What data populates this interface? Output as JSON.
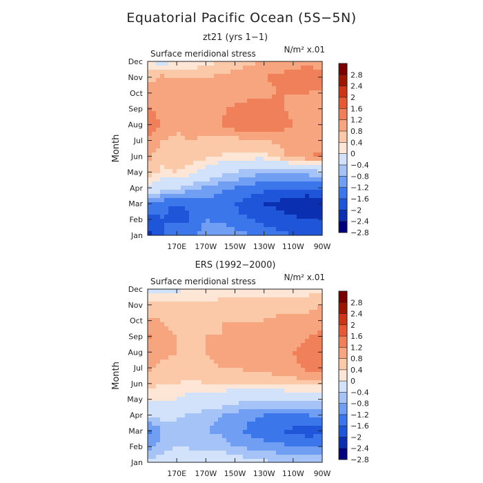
{
  "title": "Equatorial Pacific Ocean (5S−5N)",
  "colors": {
    "scale": [
      "#00007f",
      "#0a2fb0",
      "#1f55d8",
      "#3b76ea",
      "#6f9ef2",
      "#a6c3f7",
      "#d3e2fb",
      "#fde6d6",
      "#fbc8a8",
      "#f6a57f",
      "#f0805a",
      "#e55a34",
      "#cc3616",
      "#9c1600",
      "#7a0000"
    ]
  },
  "chart_data": [
    {
      "type": "heatmap",
      "subtitle": "zt21 (yrs 1−1)",
      "variable_label": "Surface meridional stress",
      "units_label": "N/m² x.01",
      "ylabel": "Month",
      "xlabel": "",
      "y_tick_labels": [
        "Jan",
        "Feb",
        "Mar",
        "Apr",
        "May",
        "Jun",
        "Jul",
        "Aug",
        "Sep",
        "Oct",
        "Nov",
        "Dec"
      ],
      "x_tick_labels": [
        "170E",
        "170W",
        "150W",
        "130W",
        "110W",
        "90W"
      ],
      "x_ticks_deg": [
        170,
        190,
        210,
        230,
        250,
        270
      ],
      "xlim": [
        150,
        270
      ],
      "ylim": [
        0,
        11
      ],
      "colorbar_levels": [
        "2.8",
        "2.4",
        "2",
        "1.6",
        "1.2",
        "0.8",
        "0.4",
        "0",
        "−0.4",
        "−0.8",
        "−1.2",
        "−1.6",
        "−2",
        "−2.4",
        "−2.8"
      ],
      "clevs": [
        -2.8,
        -2.4,
        -2,
        -1.6,
        -1.2,
        -0.8,
        -0.4,
        0,
        0.4,
        0.8,
        1.2,
        1.6,
        2,
        2.4,
        2.8
      ],
      "grid_x_deg": [
        150,
        160,
        170,
        180,
        190,
        200,
        210,
        220,
        230,
        240,
        250,
        260,
        270
      ],
      "z": [
        [
          -2.6,
          -2.0,
          -1.6,
          -1.7,
          -1.4,
          -1.2,
          -1.4,
          -1.6,
          -1.8,
          -1.9,
          -2.0,
          -2.2,
          -2.1
        ],
        [
          -2.2,
          -2.0,
          -2.2,
          -2.0,
          -1.6,
          -1.7,
          -1.9,
          -2.0,
          -2.1,
          -2.2,
          -2.3,
          -2.4,
          -2.4
        ],
        [
          -1.7,
          -1.9,
          -2.0,
          -1.9,
          -1.7,
          -1.8,
          -2.0,
          -2.2,
          -2.4,
          -2.5,
          -2.7,
          -2.8,
          -2.7
        ],
        [
          -0.1,
          -0.5,
          -0.7,
          -1.1,
          -1.3,
          -1.5,
          -1.6,
          -1.7,
          -1.9,
          -1.9,
          -2.0,
          -2.0,
          -1.9
        ],
        [
          0.7,
          0.3,
          0.4,
          0.2,
          -0.3,
          -0.6,
          -0.8,
          -1.0,
          -1.2,
          -1.2,
          -1.1,
          -1.0,
          -0.9
        ],
        [
          0.9,
          0.6,
          0.7,
          0.6,
          0.5,
          0.4,
          0.3,
          0.2,
          0.2,
          0.6,
          1.0,
          1.2,
          1.3
        ],
        [
          1.1,
          0.8,
          0.7,
          0.8,
          0.7,
          0.6,
          0.6,
          0.8,
          0.8,
          0.9,
          0.9,
          0.9,
          0.9
        ],
        [
          1.7,
          1.1,
          0.9,
          1.0,
          1.1,
          1.2,
          1.5,
          1.6,
          1.6,
          1.4,
          1.2,
          1.1,
          1.1
        ],
        [
          1.3,
          1.0,
          0.9,
          0.9,
          0.9,
          1.1,
          1.3,
          1.5,
          1.4,
          1.3,
          1.1,
          1.1,
          1.1
        ],
        [
          1.0,
          1.0,
          1.0,
          1.0,
          0.9,
          0.9,
          0.9,
          1.0,
          1.1,
          1.2,
          1.2,
          1.2,
          1.1
        ],
        [
          0.6,
          0.9,
          0.8,
          0.8,
          0.8,
          0.9,
          1.0,
          1.1,
          1.2,
          1.3,
          1.4,
          1.6,
          1.4
        ],
        [
          0.0,
          -0.2,
          0.0,
          0.1,
          0.2,
          0.4,
          0.5,
          0.7,
          0.8,
          0.9,
          1.0,
          1.0,
          0.9
        ]
      ]
    },
    {
      "type": "heatmap",
      "subtitle": "ERS (1992−2000)",
      "variable_label": "Surface meridional stress",
      "units_label": "N/m² x.01",
      "ylabel": "Month",
      "xlabel": "",
      "y_tick_labels": [
        "Jan",
        "Feb",
        "Mar",
        "Apr",
        "May",
        "Jun",
        "Jul",
        "Aug",
        "Sep",
        "Oct",
        "Nov",
        "Dec"
      ],
      "x_tick_labels": [
        "170E",
        "170W",
        "150W",
        "130W",
        "110W",
        "90W"
      ],
      "x_ticks_deg": [
        170,
        190,
        210,
        230,
        250,
        270
      ],
      "xlim": [
        150,
        270
      ],
      "ylim": [
        0,
        11
      ],
      "colorbar_levels": [
        "2.8",
        "2.4",
        "2",
        "1.6",
        "1.2",
        "0.8",
        "0.4",
        "0",
        "−0.4",
        "−0.8",
        "−1.2",
        "−1.6",
        "−2",
        "−2.4",
        "−2.8"
      ],
      "clevs": [
        -2.8,
        -2.4,
        -2,
        -1.6,
        -1.2,
        -0.8,
        -0.4,
        0,
        0.4,
        0.8,
        1.2,
        1.6,
        2,
        2.4,
        2.8
      ],
      "grid_x_deg": [
        150,
        160,
        170,
        180,
        190,
        200,
        210,
        220,
        230,
        240,
        250,
        260,
        270
      ],
      "z": [
        [
          -0.7,
          -0.5,
          -0.3,
          -0.2,
          -0.3,
          -0.3,
          -0.5,
          -0.6,
          -0.7,
          -0.8,
          -0.9,
          -0.9,
          -0.8
        ],
        [
          -1.4,
          -1.0,
          -0.8,
          -0.9,
          -0.9,
          -1.0,
          -1.2,
          -1.3,
          -1.4,
          -1.5,
          -1.6,
          -1.7,
          -1.6
        ],
        [
          -1.8,
          -1.2,
          -1.0,
          -1.1,
          -1.2,
          -1.3,
          -1.5,
          -1.7,
          -1.9,
          -2.0,
          -2.1,
          -2.2,
          -2.1
        ],
        [
          -0.7,
          -0.6,
          -0.7,
          -0.9,
          -1.0,
          -1.2,
          -1.3,
          -1.5,
          -1.6,
          -1.6,
          -1.6,
          -1.6,
          -1.5
        ],
        [
          0.1,
          0.1,
          0.0,
          -0.2,
          -0.3,
          -0.4,
          -0.6,
          -0.7,
          -0.8,
          -0.8,
          -0.7,
          -0.6,
          -0.6
        ],
        [
          0.6,
          0.4,
          0.4,
          0.3,
          0.4,
          0.4,
          0.4,
          0.5,
          0.5,
          0.6,
          0.6,
          0.6,
          0.6
        ],
        [
          0.9,
          0.7,
          0.7,
          0.6,
          0.7,
          0.8,
          0.8,
          0.9,
          0.9,
          1.0,
          1.1,
          1.3,
          1.3
        ],
        [
          1.1,
          0.9,
          0.8,
          0.8,
          0.8,
          0.9,
          1.0,
          1.1,
          1.1,
          1.1,
          1.2,
          1.3,
          1.2
        ],
        [
          1.3,
          0.9,
          0.8,
          0.8,
          0.8,
          0.8,
          0.9,
          1.0,
          1.0,
          1.0,
          1.1,
          1.2,
          1.3
        ],
        [
          0.9,
          0.8,
          0.7,
          0.7,
          0.7,
          0.8,
          0.8,
          0.8,
          0.8,
          0.9,
          0.9,
          0.9,
          1.0
        ],
        [
          0.5,
          0.5,
          0.5,
          0.5,
          0.5,
          0.6,
          0.6,
          0.6,
          0.6,
          0.6,
          0.6,
          0.7,
          0.8
        ],
        [
          -0.3,
          -0.2,
          -0.1,
          0.0,
          0.0,
          0.1,
          0.1,
          0.2,
          0.2,
          0.2,
          0.1,
          0.2,
          0.2
        ]
      ]
    }
  ]
}
